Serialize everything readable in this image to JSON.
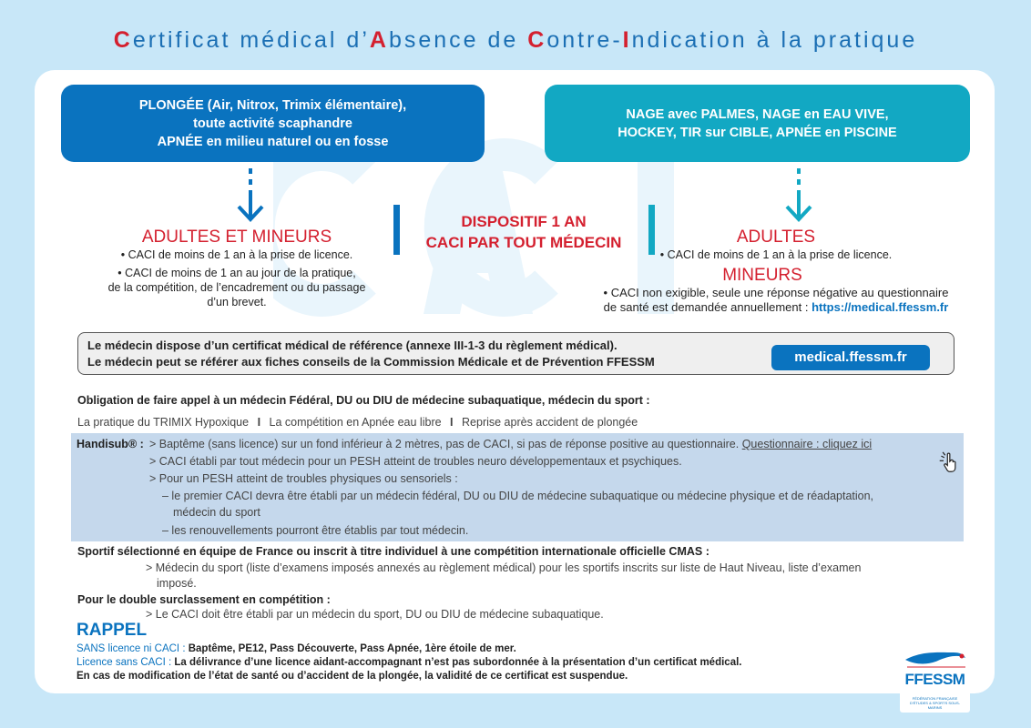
{
  "title": {
    "segments": [
      {
        "text": "C",
        "red": true
      },
      {
        "text": "ertificat médical d’",
        "red": false
      },
      {
        "text": "A",
        "red": true
      },
      {
        "text": "bsence de ",
        "red": false
      },
      {
        "text": "C",
        "red": true
      },
      {
        "text": "ontre-",
        "red": false
      },
      {
        "text": "I",
        "red": true
      },
      {
        "text": "ndication à la pratique",
        "red": false
      }
    ]
  },
  "watermark": "CACI",
  "left_box": {
    "lines": [
      "PLONGÉE (Air, Nitrox, Trimix élémentaire),",
      "toute activité scaphandre",
      "APNÉE en milieu naturel ou en fosse"
    ]
  },
  "right_box": {
    "lines": [
      "NAGE avec PALMES, NAGE en EAU VIVE,",
      "HOCKEY, TIR sur CIBLE, APNÉE en PISCINE"
    ]
  },
  "left": {
    "heading": "ADULTES ET MINEURS",
    "items": [
      "• CACI de moins de 1 an à la prise de licence.",
      "• CACI de moins de 1 an au jour de la pratique,",
      "de la compétition, de l’encadrement ou du passage",
      "d’un brevet."
    ]
  },
  "center": {
    "line1": "DISPOSITIF 1 AN",
    "line2": "CACI PAR TOUT MÉDECIN"
  },
  "right": {
    "adults_heading": "ADULTES",
    "adults_item": "• CACI de moins de 1 an à la prise de licence.",
    "minors_heading": "MINEURS",
    "minors_line1": "• CACI non exigible, seule une réponse négative au questionnaire",
    "minors_line2": "de santé est demandée annuellement : ",
    "minors_link": "https://medical.ffessm.fr"
  },
  "reference": {
    "line1": "Le médecin dispose d’un certificat médical de référence (annexe III-1-3 du règlement médical).",
    "line2": "Le médecin peut se référer aux fiches conseils de la Commission Médicale et de Prévention FFESSM",
    "button": "medical.ffessm.fr"
  },
  "obligation": {
    "heading": "Obligation de faire appel à un médecin Fédéral, DU ou DIU de médecine subaquatique, médecin du sport :",
    "items": [
      "La pratique du TRIMIX Hypoxique",
      "La compétition en Apnée eau libre",
      "Reprise après accident de plongée"
    ],
    "separator": "I"
  },
  "handisub": {
    "label": "Handisub® :",
    "line1": "> Baptême (sans licence) sur un fond inférieur à 2 mètres, pas de CACI, si pas de réponse positive au questionnaire. ",
    "link": "Questionnaire : cliquez ici",
    "line2": "> CACI établi par tout médecin pour un PESH atteint de troubles neuro développementaux et psychiques.",
    "line3": "> Pour un PESH atteint de troubles physiques ou sensoriels :",
    "line4": "– le premier CACI devra être établi par un médecin fédéral, DU ou DIU de médecine subaquatique ou médecine physique et de réadaptation,",
    "line4b": "médecin du sport",
    "line5": "– les renouvellements pourront être établis par tout médecin."
  },
  "sportif": {
    "heading": "Sportif sélectionné en équipe de France ou inscrit à titre individuel à une compétition internationale officielle CMAS :",
    "line1": "> Médecin du sport (liste d’examens imposés annexés au règlement médical) pour les sportifs inscrits sur liste de Haut Niveau, liste d’examen",
    "line1b": "imposé."
  },
  "double": {
    "heading": "Pour le double surclassement en compétition :",
    "line1": "> Le CACI doit être établi par un médecin du sport, DU ou DIU de médecine subaquatique."
  },
  "rappel": {
    "heading": "RAPPEL",
    "l1_label": "SANS licence ni CACI  : ",
    "l1_text": "Baptême, PE12, Pass Découverte,  Pass Apnée, 1ère étoile de mer.",
    "l2_label": "Licence sans CACI : ",
    "l2_text": "La délivrance d’une licence aidant-accompagnant n’est  pas subordonnée à la présentation  d’un certificat médical.",
    "l3": "En cas de modification de l’état de santé ou d’accident de la plongée, la validité de ce certificat est suspendue."
  },
  "logo": {
    "name": "FFESSM",
    "sub": "FÉDÉRATION FRANÇAISE D’ÉTUDES & SPORTS SOUS-MARINS"
  },
  "colors": {
    "blue": "#0a73bf",
    "teal": "#12a8c3",
    "red": "#d4202f",
    "background": "#c8e7f8"
  }
}
